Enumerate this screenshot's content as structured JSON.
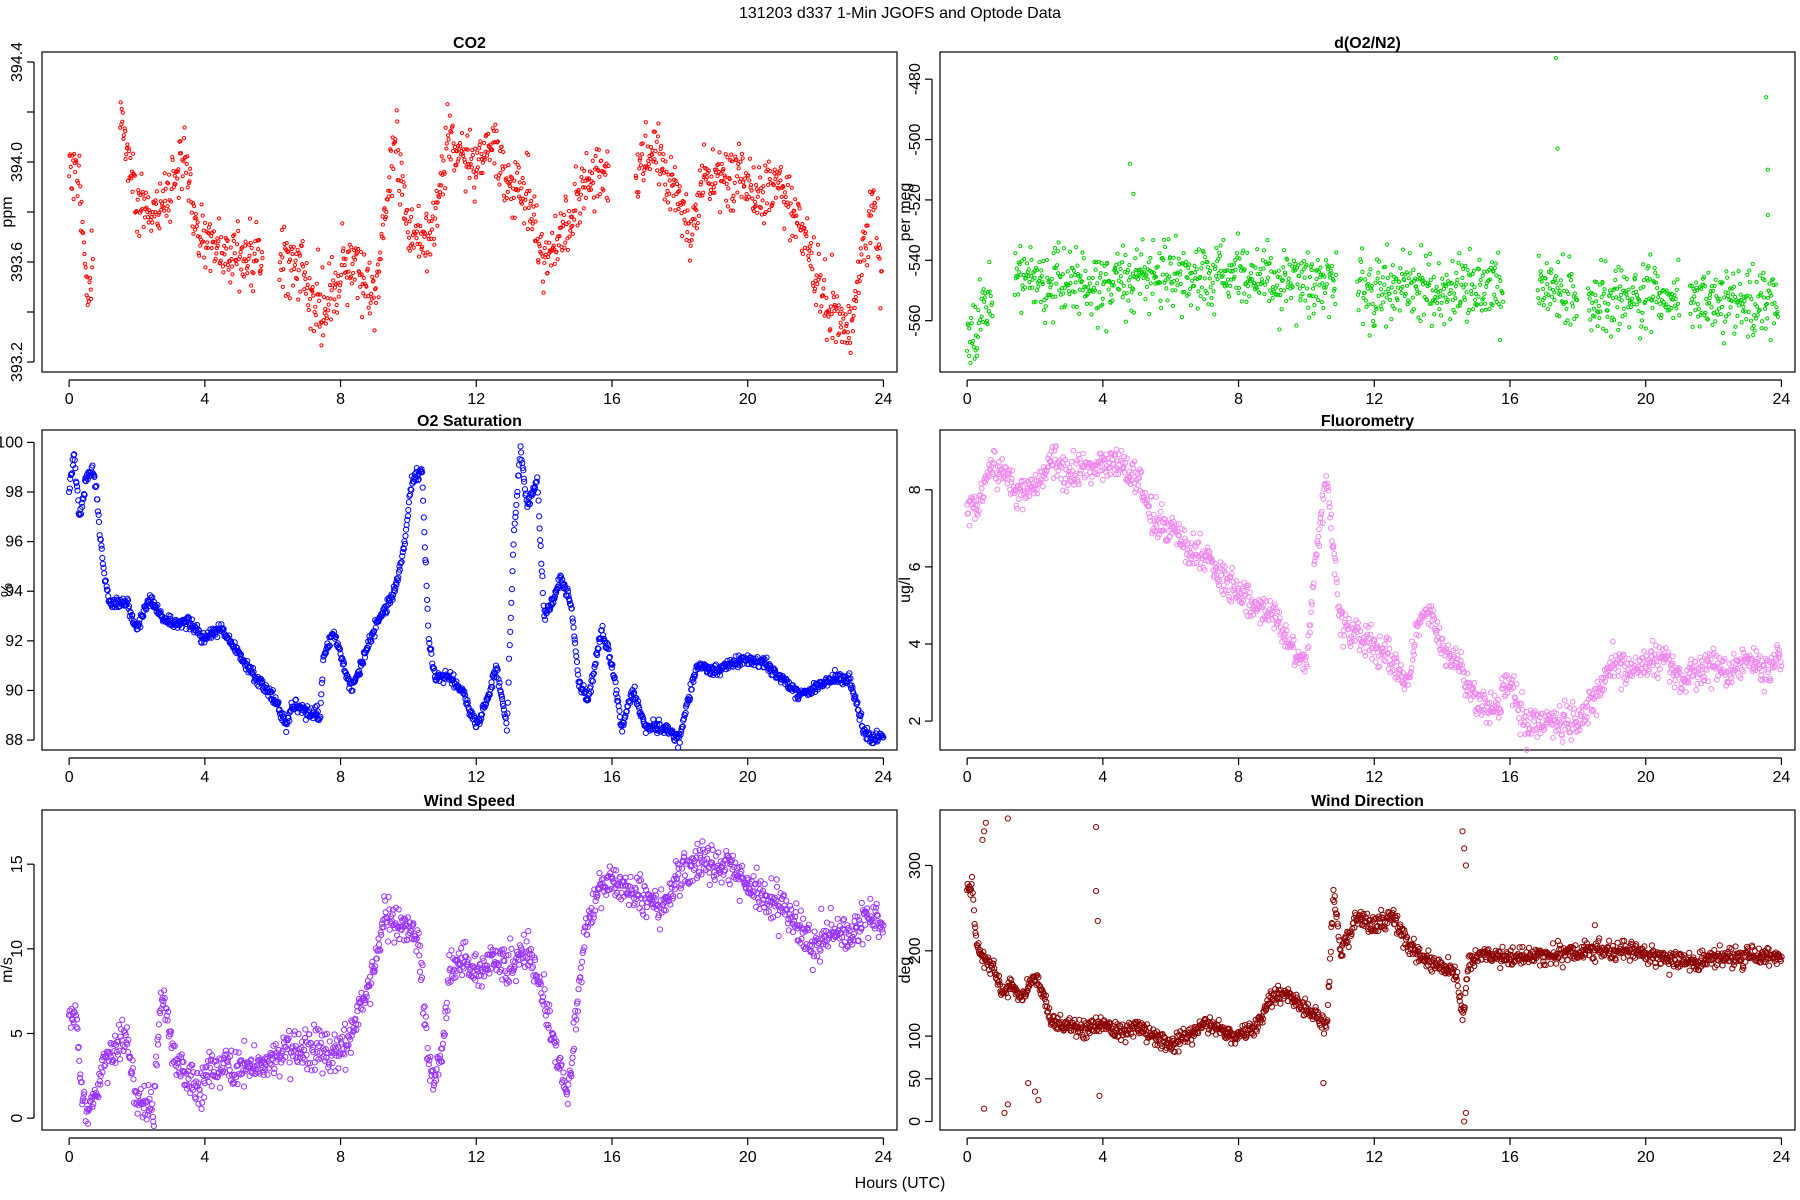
{
  "figure": {
    "title": "131203   d337   1-Min  JGOFS and Optode Data",
    "xlabel": "Hours (UTC)"
  },
  "chart_data": [
    {
      "type": "scatter",
      "title": "CO2",
      "ylabel": "ppm",
      "color": "#ff0000",
      "xlim": [
        -0.8,
        24.4
      ],
      "ylim": [
        393.16,
        394.44
      ],
      "xticks": [
        0,
        4,
        8,
        12,
        16,
        20,
        24
      ],
      "yticks": [
        393.2,
        393.4,
        393.6,
        393.8,
        394.0,
        394.2,
        394.4
      ],
      "ytick_labels": [
        "393.2",
        "",
        "393.6",
        "",
        "394.0",
        "",
        "394.4"
      ],
      "ytick_rotated": true,
      "marker_size": 1.6,
      "x": [
        0.0,
        0.33,
        0.4,
        0.5,
        0.6,
        1.6,
        2.0,
        2.5,
        3.0,
        3.2,
        3.4,
        3.6,
        4.0,
        4.5,
        5.0,
        5.5,
        6.3,
        6.8,
        7.2,
        7.6,
        8.0,
        8.5,
        9.0,
        9.6,
        10.0,
        10.5,
        10.7,
        11.2,
        11.5,
        12.0,
        12.5,
        13.0,
        13.5,
        14.0,
        14.5,
        15.0,
        15.5,
        15.8,
        16.8,
        17.3,
        17.8,
        18.3,
        18.8,
        19.3,
        19.8,
        20.3,
        21.0,
        21.4,
        21.8,
        22.3,
        22.7,
        23.0,
        23.3,
        23.7,
        23.95
      ],
      "y": [
        394.0,
        393.9,
        393.8,
        393.5,
        393.47,
        394.15,
        393.85,
        393.8,
        393.9,
        394.0,
        394.05,
        393.8,
        393.68,
        393.66,
        393.63,
        393.62,
        393.6,
        393.58,
        393.45,
        393.38,
        393.58,
        393.58,
        393.45,
        394.1,
        393.72,
        393.72,
        393.72,
        394.1,
        394.05,
        393.95,
        394.1,
        393.9,
        393.85,
        393.6,
        393.7,
        393.85,
        393.95,
        393.95,
        394.0,
        394.05,
        393.9,
        393.75,
        393.95,
        393.95,
        393.95,
        393.9,
        393.9,
        393.8,
        393.65,
        393.45,
        393.35,
        393.3,
        393.55,
        393.85,
        393.5
      ],
      "noise": 0.1,
      "gaps": [
        [
          0.7,
          1.5
        ],
        [
          5.7,
          6.2
        ],
        [
          15.9,
          16.7
        ]
      ],
      "seed": 11
    },
    {
      "type": "scatter",
      "title": "d(O2/N2)",
      "ylabel": "per meg",
      "color": "#00cc00",
      "xlim": [
        -0.8,
        24.4
      ],
      "ylim": [
        -577,
        -471
      ],
      "xticks": [
        0,
        4,
        8,
        12,
        16,
        20,
        24
      ],
      "yticks": [
        -480,
        -500,
        -520,
        -540,
        -560
      ],
      "ytick_labels": [
        "-480",
        "-500",
        "-520",
        "-540",
        "-560"
      ],
      "ytick_rotated": true,
      "marker_size": 1.6,
      "x": [
        0.0,
        0.3,
        0.5,
        0.7,
        1.5,
        2.5,
        4.0,
        5.0,
        6.0,
        6.5,
        7.5,
        8.5,
        9.5,
        10.5,
        10.8,
        11.0,
        12.0,
        13.0,
        14.0,
        15.0,
        15.7,
        16.9,
        17.5,
        18.0,
        18.3,
        19.0,
        20.0,
        21.0,
        21.2,
        22.0,
        23.0,
        23.9
      ],
      "y": [
        -563,
        -560,
        -556,
        -552,
        -547,
        -547,
        -548,
        -546,
        -545,
        -545,
        -546,
        -546,
        -547,
        -547,
        -546,
        -547,
        -549,
        -549,
        -550,
        -548,
        -548,
        -547,
        -551,
        -554,
        -553,
        -554,
        -552,
        -551,
        -553,
        -554,
        -552,
        -553
      ],
      "noise": 9,
      "gaps": [
        [
          0.75,
          1.4
        ],
        [
          10.9,
          11.5
        ],
        [
          15.8,
          16.8
        ],
        [
          18.0,
          18.3
        ],
        [
          21.0,
          21.3
        ]
      ],
      "outliers_x": [
        4.8,
        4.9,
        17.35,
        17.4,
        23.55,
        23.6,
        23.6
      ],
      "outliers_y": [
        -508,
        -518,
        -473,
        -503,
        -486,
        -510,
        -525
      ],
      "seed": 23
    },
    {
      "type": "scatter",
      "title": "O2 Saturation",
      "ylabel": "%",
      "color": "#0000ff",
      "xlim": [
        -0.8,
        24.4
      ],
      "ylim": [
        87.6,
        100.5
      ],
      "xticks": [
        0,
        4,
        8,
        12,
        16,
        20,
        24
      ],
      "yticks": [
        88,
        90,
        92,
        94,
        96,
        98,
        100
      ],
      "ytick_labels": [
        "88",
        "90",
        "92",
        "94",
        "96",
        "98",
        "100"
      ],
      "ytick_rotated": false,
      "marker_size": 2.6,
      "x": [
        0.0,
        0.15,
        0.3,
        0.5,
        0.7,
        0.8,
        1.0,
        1.2,
        1.4,
        1.7,
        2.0,
        2.4,
        2.7,
        3.0,
        3.5,
        4.0,
        4.5,
        5.0,
        5.5,
        6.0,
        6.4,
        6.6,
        7.0,
        7.4,
        7.5,
        7.8,
        8.0,
        8.3,
        8.6,
        9.0,
        9.4,
        9.6,
        9.9,
        10.1,
        10.4,
        10.6,
        10.8,
        11.2,
        11.6,
        12.0,
        12.4,
        12.6,
        12.9,
        13.1,
        13.3,
        13.5,
        13.8,
        14.0,
        14.2,
        14.5,
        14.8,
        15.0,
        15.3,
        15.7,
        16.0,
        16.3,
        16.6,
        17.0,
        17.5,
        18.0,
        18.5,
        19.0,
        19.5,
        20.0,
        20.5,
        21.0,
        21.5,
        22.0,
        22.5,
        23.0,
        23.4,
        23.7,
        24.0
      ],
      "y": [
        98.0,
        99.5,
        97.0,
        98.5,
        99.0,
        98.0,
        95.0,
        93.5,
        93.5,
        93.5,
        92.5,
        93.8,
        93.0,
        92.7,
        92.8,
        92.1,
        92.5,
        91.5,
        90.5,
        89.8,
        88.6,
        89.5,
        89.1,
        89.0,
        91.5,
        92.3,
        91.5,
        90.0,
        91.0,
        92.5,
        93.5,
        94.0,
        96.0,
        98.5,
        98.8,
        92.0,
        90.5,
        90.5,
        90.0,
        88.5,
        90.0,
        91.0,
        88.5,
        96.0,
        99.8,
        97.5,
        98.5,
        93.0,
        93.5,
        94.5,
        93.5,
        90.5,
        89.5,
        92.5,
        91.0,
        88.5,
        90.0,
        88.5,
        88.5,
        88.1,
        91.0,
        90.8,
        91.1,
        91.2,
        91.1,
        90.5,
        89.8,
        90.1,
        90.5,
        90.5,
        88.5,
        88.0,
        88.3
      ],
      "noise": 0.12,
      "density": 60,
      "gaps": [],
      "seed": 5
    },
    {
      "type": "scatter",
      "title": "Fluorometry",
      "ylabel": "ug/l",
      "color": "#ee88ee",
      "xlim": [
        -0.8,
        24.4
      ],
      "ylim": [
        1.25,
        9.55
      ],
      "xticks": [
        0,
        4,
        8,
        12,
        16,
        20,
        24
      ],
      "yticks": [
        2,
        4,
        6,
        8
      ],
      "ytick_labels": [
        "2",
        "4",
        "6",
        "8"
      ],
      "ytick_rotated": true,
      "marker_size": 2.4,
      "x": [
        0.0,
        0.3,
        0.7,
        1.0,
        1.5,
        2.0,
        2.5,
        3.0,
        3.5,
        4.0,
        4.5,
        5.0,
        5.5,
        6.0,
        6.5,
        7.0,
        7.5,
        8.0,
        8.5,
        9.0,
        9.5,
        10.0,
        10.3,
        10.6,
        11.0,
        11.5,
        12.0,
        12.5,
        13.0,
        13.3,
        13.6,
        14.0,
        14.5,
        15.0,
        15.5,
        16.0,
        16.5,
        17.0,
        17.5,
        18.0,
        18.5,
        19.0,
        19.5,
        20.0,
        20.5,
        21.0,
        21.5,
        22.0,
        22.5,
        23.0,
        23.5,
        24.0
      ],
      "y": [
        7.5,
        7.5,
        8.5,
        8.5,
        8.0,
        8.0,
        8.8,
        8.3,
        8.6,
        8.6,
        8.7,
        8.3,
        7.2,
        7.0,
        6.5,
        6.2,
        5.8,
        5.3,
        5.0,
        4.8,
        4.0,
        3.5,
        6.5,
        8.3,
        4.5,
        4.3,
        4.0,
        3.5,
        3.0,
        4.5,
        5.0,
        3.8,
        3.5,
        2.5,
        2.2,
        3.0,
        1.8,
        2.1,
        2.0,
        2.0,
        2.6,
        3.5,
        3.3,
        3.5,
        3.7,
        3.0,
        3.2,
        3.5,
        3.2,
        3.7,
        3.3,
        3.7
      ],
      "noise": 0.35,
      "gaps": [],
      "seed": 37
    },
    {
      "type": "scatter",
      "title": "Wind Speed",
      "ylabel": "m/s",
      "color": "#9933ff",
      "xlim": [
        -0.8,
        24.4
      ],
      "ylim": [
        -0.7,
        18.2
      ],
      "xticks": [
        0,
        4,
        8,
        12,
        16,
        20,
        24
      ],
      "yticks": [
        0,
        5,
        10,
        15
      ],
      "ytick_labels": [
        "0",
        "5",
        "10",
        "15"
      ],
      "ytick_rotated": true,
      "marker_size": 2.6,
      "x": [
        0.0,
        0.2,
        0.35,
        0.5,
        0.7,
        1.0,
        1.3,
        1.5,
        1.7,
        2.0,
        2.3,
        2.5,
        2.7,
        2.9,
        3.1,
        3.5,
        3.9,
        4.0,
        4.5,
        5.0,
        5.5,
        6.0,
        6.5,
        7.0,
        7.5,
        8.0,
        8.5,
        9.0,
        9.3,
        9.6,
        10.0,
        10.3,
        10.6,
        10.8,
        11.0,
        11.2,
        11.5,
        12.0,
        12.5,
        13.0,
        13.5,
        14.0,
        14.4,
        14.7,
        14.9,
        15.2,
        15.5,
        16.0,
        16.5,
        17.0,
        17.5,
        18.0,
        18.5,
        19.0,
        19.5,
        20.0,
        20.5,
        21.0,
        21.5,
        22.0,
        22.5,
        23.0,
        23.5,
        24.0
      ],
      "y": [
        6.5,
        6.0,
        1.5,
        0.5,
        1.0,
        3.0,
        4.0,
        4.5,
        4.8,
        1.0,
        1.0,
        1.0,
        7.0,
        6.0,
        3.5,
        2.5,
        1.5,
        2.8,
        3.0,
        3.0,
        3.0,
        3.5,
        4.0,
        4.2,
        4.0,
        3.5,
        6.0,
        9.0,
        12.0,
        11.5,
        11.0,
        10.5,
        3.0,
        2.5,
        4.0,
        8.5,
        9.5,
        8.5,
        9.5,
        9.0,
        10.0,
        7.0,
        3.5,
        1.5,
        5.0,
        11.0,
        13.0,
        14.0,
        13.5,
        13.0,
        12.5,
        14.5,
        15.0,
        15.0,
        14.5,
        14.0,
        13.0,
        12.5,
        11.5,
        10.0,
        11.0,
        10.5,
        12.0,
        11.5
      ],
      "noise": 0.9,
      "gaps": [],
      "seed": 71
    },
    {
      "type": "scatter",
      "title": "Wind Direction",
      "ylabel": "deg",
      "color": "#8b0000",
      "xlim": [
        -0.8,
        24.4
      ],
      "ylim": [
        -10,
        365
      ],
      "xticks": [
        0,
        4,
        8,
        12,
        16,
        20,
        24
      ],
      "yticks": [
        0,
        50,
        100,
        200,
        300
      ],
      "ytick_labels": [
        "0",
        "50",
        "100",
        "200",
        "300"
      ],
      "ytick_rotated": true,
      "marker_size": 2.6,
      "x": [
        0.0,
        0.15,
        0.3,
        0.5,
        0.8,
        1.0,
        1.3,
        1.6,
        1.8,
        2.0,
        2.2,
        2.5,
        3.0,
        3.5,
        4.0,
        4.5,
        5.0,
        5.5,
        6.0,
        6.5,
        7.0,
        7.5,
        8.0,
        8.5,
        9.0,
        9.5,
        10.0,
        10.4,
        10.6,
        10.8,
        11.0,
        11.5,
        12.0,
        12.5,
        13.0,
        13.5,
        14.0,
        14.4,
        14.6,
        14.8,
        15.0,
        15.5,
        16.0,
        16.5,
        17.0,
        17.5,
        18.0,
        18.5,
        19.0,
        19.5,
        20.0,
        20.5,
        21.0,
        21.5,
        22.0,
        22.5,
        23.0,
        23.5,
        24.0
      ],
      "y": [
        270,
        270,
        200,
        190,
        180,
        150,
        160,
        140,
        160,
        170,
        150,
        115,
        110,
        110,
        115,
        105,
        110,
        100,
        90,
        100,
        115,
        110,
        100,
        110,
        150,
        150,
        130,
        120,
        110,
        270,
        200,
        240,
        230,
        240,
        210,
        190,
        180,
        175,
        120,
        190,
        195,
        195,
        190,
        195,
        195,
        195,
        200,
        200,
        200,
        200,
        195,
        190,
        190,
        185,
        195,
        190,
        195,
        195,
        190
      ],
      "noise": 9,
      "gaps": [],
      "outliers_x": [
        0.45,
        0.5,
        0.55,
        1.2,
        0.5,
        1.2,
        1.1,
        1.8,
        2.0,
        2.1,
        3.8,
        3.8,
        3.85,
        3.9,
        14.6,
        14.65,
        14.7,
        14.7,
        14.65,
        10.5,
        18.5
      ],
      "outliers_y": [
        330,
        340,
        350,
        355,
        15,
        20,
        10,
        45,
        35,
        25,
        345,
        270,
        235,
        30,
        340,
        320,
        300,
        10,
        0,
        45,
        230
      ],
      "seed": 97
    }
  ]
}
